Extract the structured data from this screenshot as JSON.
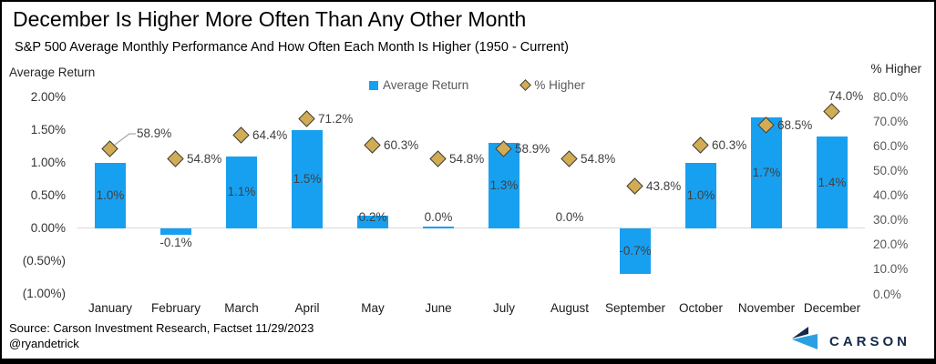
{
  "header": {
    "title": "December Is Higher More Often Than Any Other Month",
    "subtitle": "S&P 500 Average Monthly Performance And How Often Each Month Is Higher (1950 - Current)"
  },
  "legend": {
    "avg_return_label": "Average Return",
    "pct_higher_label": "% Higher"
  },
  "footer": {
    "source": "Source: Carson Investment Research, Factset 11/29/2023",
    "handle": "@ryandetrick",
    "logo_text": "CARSON"
  },
  "colors": {
    "bar": "#18A0F0",
    "diamond_fill": "#D2AC54",
    "diamond_stroke": "#3F3F3F",
    "axis_line": "#D9D9D9",
    "callout_line": "#A6A6A6",
    "navy": "#13294B",
    "logo_blue": "#2B9FE3"
  },
  "chart_data": {
    "type": "bar",
    "subtype": "combo bar + diamond markers, dual axis",
    "title": "December Is Higher More Often Than Any Other Month",
    "subtitle": "S&P 500 Average Monthly Performance And How Often Each Month Is Higher (1950 - Current)",
    "categories": [
      "January",
      "February",
      "March",
      "April",
      "May",
      "June",
      "July",
      "August",
      "September",
      "October",
      "November",
      "December"
    ],
    "series": [
      {
        "name": "Average Return",
        "type": "bar",
        "axis": "left",
        "values": [
          1.0,
          -0.1,
          1.1,
          1.5,
          0.2,
          0.0,
          1.3,
          0.0,
          -0.7,
          1.0,
          1.7,
          1.4
        ],
        "labels": [
          "1.0%",
          "-0.1%",
          "1.1%",
          "1.5%",
          "0.2%",
          "0.0%",
          "1.3%",
          "0.0%",
          "-0.7%",
          "1.0%",
          "1.7%",
          "1.4%"
        ],
        "hairline_bar_indices": [
          5
        ]
      },
      {
        "name": "% Higher",
        "type": "scatter",
        "marker": "diamond",
        "axis": "right",
        "values": [
          58.9,
          54.8,
          64.4,
          71.2,
          60.3,
          54.8,
          58.9,
          54.8,
          43.8,
          60.3,
          68.5,
          74.0
        ],
        "labels": [
          "58.9%",
          "54.8%",
          "64.4%",
          "71.2%",
          "60.3%",
          "54.8%",
          "58.9%",
          "54.8%",
          "43.8%",
          "60.3%",
          "68.5%",
          "74.0%"
        ],
        "label_pos": [
          "callout",
          "right",
          "right",
          "right",
          "right",
          "right",
          "right",
          "right",
          "right",
          "right",
          "right",
          "above"
        ]
      }
    ],
    "left_axis": {
      "title": "Average Return",
      "range": [
        -1.0,
        2.0
      ],
      "ticks": [
        {
          "label": "2.00%",
          "v": 2.0
        },
        {
          "label": "1.50%",
          "v": 1.5
        },
        {
          "label": "1.00%",
          "v": 1.0
        },
        {
          "label": "0.50%",
          "v": 0.5
        },
        {
          "label": "0.00%",
          "v": 0.0
        },
        {
          "label": "(0.50%)",
          "v": -0.5
        },
        {
          "label": "(1.00%)",
          "v": -1.0
        }
      ]
    },
    "right_axis": {
      "title": "% Higher",
      "range": [
        0,
        80
      ],
      "ticks": [
        {
          "label": "80.0%",
          "v": 80
        },
        {
          "label": "70.0%",
          "v": 70
        },
        {
          "label": "60.0%",
          "v": 60
        },
        {
          "label": "50.0%",
          "v": 50
        },
        {
          "label": "40.0%",
          "v": 40
        },
        {
          "label": "30.0%",
          "v": 30
        },
        {
          "label": "20.0%",
          "v": 20
        },
        {
          "label": "10.0%",
          "v": 10
        },
        {
          "label": "0.0%",
          "v": 0
        }
      ]
    },
    "grid": "off",
    "legend_position": "top-center",
    "source": "Source: Carson Investment Research, Factset 11/29/2023"
  }
}
